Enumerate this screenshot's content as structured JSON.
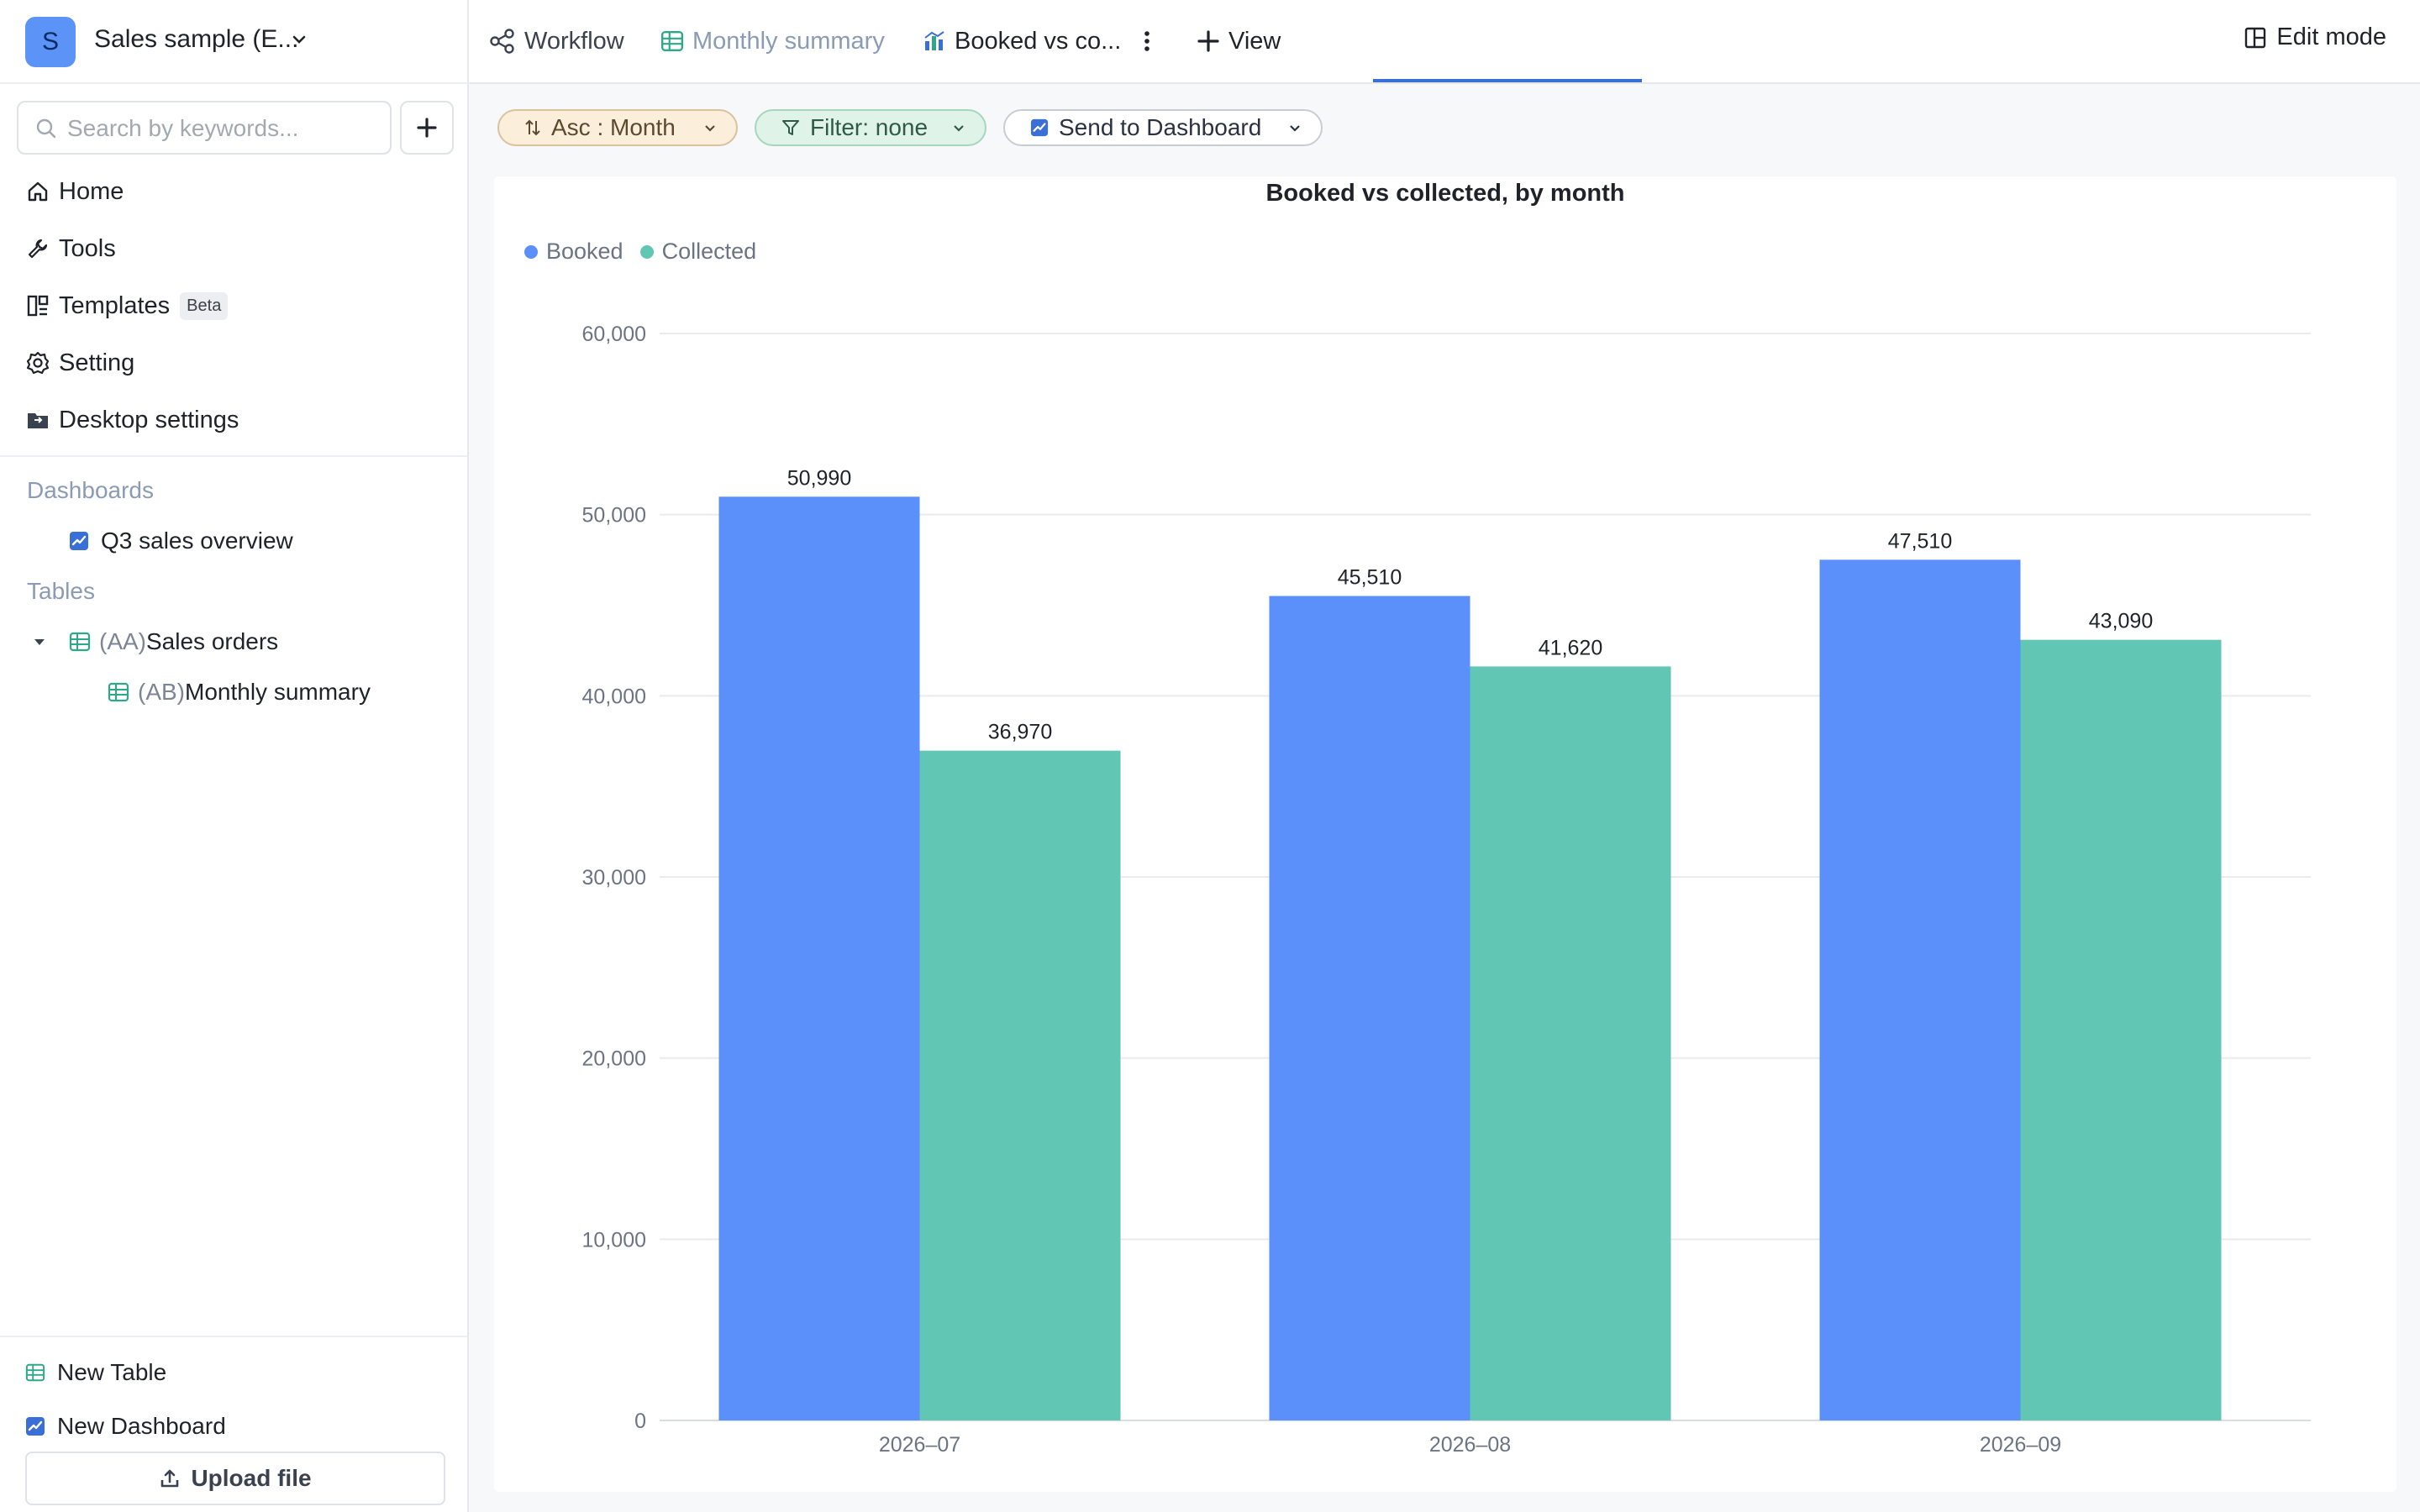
{
  "workspace": {
    "initial": "S",
    "name": "Sales sample (E..."
  },
  "search": {
    "placeholder": "Search by keywords..."
  },
  "nav": [
    {
      "label": "Home",
      "icon": "home-icon"
    },
    {
      "label": "Tools",
      "icon": "wrench-icon"
    },
    {
      "label": "Templates",
      "icon": "templates-icon",
      "badge": "Beta"
    },
    {
      "label": "Setting",
      "icon": "gear-icon"
    },
    {
      "label": "Desktop settings",
      "icon": "desktop-folder-icon"
    }
  ],
  "sections": {
    "dashboards_label": "Dashboards",
    "dashboards": [
      {
        "label": "Q3 sales overview",
        "icon": "dashboard-icon"
      }
    ],
    "tables_label": "Tables",
    "tables": [
      {
        "prefix": "(AA)",
        "label": "Sales orders",
        "icon": "table-icon",
        "expanded": true
      },
      {
        "prefix": "(AB)",
        "label": "Monthly summary",
        "icon": "table-icon"
      }
    ]
  },
  "bottom": {
    "new_table": "New Table",
    "new_dashboard": "New Dashboard",
    "upload": "Upload file"
  },
  "tabs": {
    "workflow": "Workflow",
    "monthly_summary": "Monthly summary",
    "booked": "Booked vs co...",
    "add_view": "View",
    "edit_mode": "Edit mode"
  },
  "toolbar": {
    "sort": "Asc : Month",
    "filter": "Filter: none",
    "send": "Send to Dashboard"
  },
  "colors": {
    "booked": "#5b8ff9",
    "collected": "#61c6b3",
    "accent": "#3b6fd8"
  },
  "chart_data": {
    "type": "bar",
    "title": "Booked vs collected, by month",
    "categories": [
      "2026–07",
      "2026–08",
      "2026–09"
    ],
    "series": [
      {
        "name": "Booked",
        "values": [
          50990,
          45510,
          47510
        ],
        "labels": [
          "50,990",
          "45,510",
          "47,510"
        ]
      },
      {
        "name": "Collected",
        "values": [
          36970,
          41620,
          43090
        ],
        "labels": [
          "36,970",
          "41,620",
          "43,090"
        ]
      }
    ],
    "ylim": [
      0,
      60000
    ],
    "yticks": [
      0,
      10000,
      20000,
      30000,
      40000,
      50000,
      60000
    ],
    "ytick_labels": [
      "0",
      "10,000",
      "20,000",
      "30,000",
      "40,000",
      "50,000",
      "60,000"
    ],
    "grid": true,
    "legend": "top-left"
  }
}
